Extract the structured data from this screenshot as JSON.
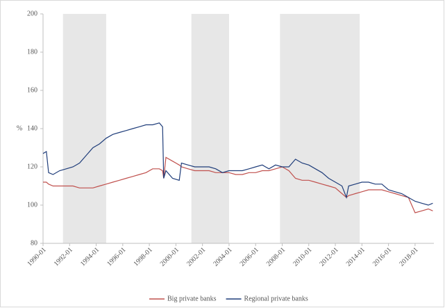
{
  "chart_data": {
    "type": "line",
    "y_label": "%",
    "x": [
      "1990-01",
      "1990-04",
      "1990-06",
      "1990-10",
      "1991-04",
      "1991-10",
      "1992-04",
      "1992-10",
      "1993-04",
      "1993-10",
      "1994-04",
      "1994-10",
      "1995-04",
      "1995-10",
      "1996-04",
      "1996-10",
      "1997-04",
      "1997-10",
      "1998-04",
      "1998-10",
      "1999-01",
      "1999-02",
      "1999-04",
      "1999-10",
      "2000-04",
      "2000-06",
      "2000-12",
      "2001-06",
      "2002-01",
      "2002-07",
      "2003-01",
      "2003-07",
      "2004-01",
      "2004-07",
      "2005-01",
      "2005-07",
      "2006-01",
      "2006-07",
      "2007-01",
      "2007-07",
      "2008-01",
      "2008-07",
      "2009-01",
      "2009-07",
      "2010-01",
      "2010-07",
      "2011-01",
      "2011-07",
      "2012-01",
      "2012-07",
      "2012-11",
      "2013-01",
      "2013-07",
      "2014-01",
      "2014-07",
      "2015-01",
      "2015-07",
      "2016-01",
      "2016-07",
      "2017-01",
      "2017-07",
      "2018-01",
      "2018-07",
      "2019-01",
      "2019-05"
    ],
    "series": [
      {
        "name": "Big private banks",
        "color": "#c0504d",
        "values": [
          112,
          112,
          111,
          110,
          110,
          110,
          110,
          109,
          109,
          109,
          110,
          111,
          112,
          113,
          114,
          115,
          116,
          117,
          119,
          119,
          118,
          114,
          125,
          123,
          121,
          120,
          119,
          118,
          118,
          118,
          117,
          117,
          117,
          116,
          116,
          117,
          117,
          118,
          118,
          119,
          120,
          118,
          114,
          113,
          113,
          112,
          111,
          110,
          109,
          106,
          104,
          105,
          106,
          107,
          108,
          108,
          108,
          107,
          106,
          105,
          104,
          96,
          97,
          98,
          97
        ]
      },
      {
        "name": "Regional private banks",
        "color": "#1f3d7a",
        "values": [
          127,
          128,
          117,
          116,
          118,
          119,
          120,
          122,
          126,
          130,
          132,
          135,
          137,
          138,
          139,
          140,
          141,
          142,
          142,
          143,
          141,
          114,
          118,
          114,
          113,
          122,
          121,
          120,
          120,
          120,
          119,
          117,
          118,
          118,
          118,
          119,
          120,
          121,
          119,
          121,
          120,
          120,
          124,
          122,
          121,
          119,
          117,
          114,
          112,
          110,
          104,
          110,
          111,
          112,
          112,
          111,
          111,
          108,
          107,
          106,
          104,
          102,
          101,
          100,
          101
        ]
      }
    ],
    "xlim": [
      "1990-01",
      "2019-06"
    ],
    "xticks": [
      "1990-01",
      "1992-01",
      "1994-01",
      "1996-01",
      "1998-01",
      "2000-01",
      "2002-01",
      "2004-01",
      "2006-01",
      "2008-01",
      "2010-01",
      "2012-01",
      "2014-01",
      "2016-01",
      "2018-01"
    ],
    "ylim": [
      80,
      200
    ],
    "yticks": [
      80,
      100,
      120,
      140,
      160,
      180,
      200
    ],
    "shaded_periods": [
      [
        "1991-07",
        "1994-10"
      ],
      [
        "2001-03",
        "2004-01"
      ],
      [
        "2007-11",
        "2013-11"
      ]
    ],
    "shade_color": "#e7e7e7",
    "legend": "bottom"
  }
}
